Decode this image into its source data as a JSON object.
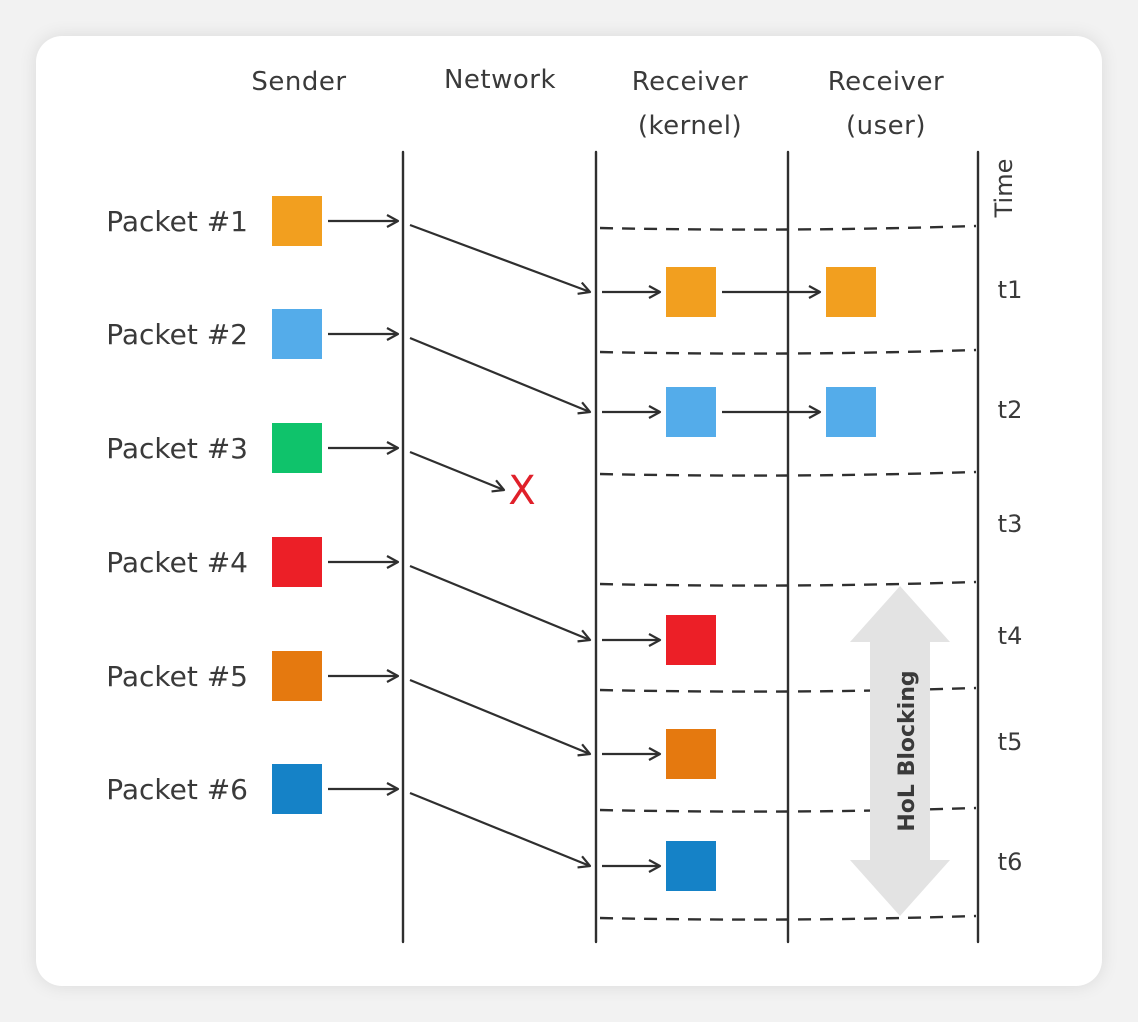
{
  "columns": {
    "sender": "Sender",
    "network": "Network",
    "receiver_kernel": [
      "Receiver",
      "(kernel)"
    ],
    "receiver_user": [
      "Receiver",
      "(user)"
    ]
  },
  "time_label": "Time",
  "lost_marker": "X",
  "hol_label": "HoL Blocking",
  "colors": {
    "packet_1": "#f29f1f",
    "packet_2": "#54acea",
    "packet_3": "#0fc36b",
    "packet_4": "#ec1f27",
    "packet_5": "#e5790f",
    "packet_6": "#1582c7",
    "lost": "#e0202a",
    "hol_arrow": "#e3e3e3",
    "line": "#2f2f2f"
  },
  "packets": [
    {
      "label": "Packet #1",
      "color_key": "packet_1",
      "lost": false,
      "kernel": true,
      "user": true
    },
    {
      "label": "Packet #2",
      "color_key": "packet_2",
      "lost": false,
      "kernel": true,
      "user": true
    },
    {
      "label": "Packet #3",
      "color_key": "packet_3",
      "lost": true,
      "kernel": false,
      "user": false
    },
    {
      "label": "Packet #4",
      "color_key": "packet_4",
      "lost": false,
      "kernel": true,
      "user": false
    },
    {
      "label": "Packet #5",
      "color_key": "packet_5",
      "lost": false,
      "kernel": true,
      "user": false
    },
    {
      "label": "Packet #6",
      "color_key": "packet_6",
      "lost": false,
      "kernel": true,
      "user": false
    }
  ],
  "time_slots": [
    "t1",
    "t2",
    "t3",
    "t4",
    "t5",
    "t6"
  ]
}
